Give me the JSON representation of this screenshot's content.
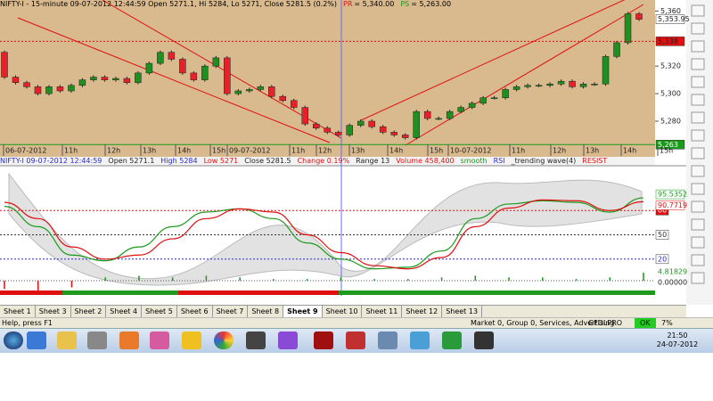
{
  "price_header": {
    "title": "NIFTY-I - 15-minute 09-07-2012 12:44:59 Open 5271.1, Hi 5284, Lo 5271, Close 5281.5 (0.2%)",
    "pr_label": "PR",
    "pr_value": "= 5,340.00",
    "ps_label": "PS",
    "ps_value": "= 5,263.00"
  },
  "indicator_header": [
    "NIFTY-I 09-07-2012 12:44:59",
    "Open 5271.1",
    "High 5284",
    "Low 5271",
    "Close 5281.5",
    "Change 0.19%",
    "Range 13",
    "Volume 458,400",
    "smooth",
    "RSI",
    "_trending wave(4)",
    "RESIST"
  ],
  "chart_data": [
    {
      "type": "candlestick",
      "first_open": 5330,
      "up_color": "#1f8f1f",
      "down_color": "#e8202a",
      "closes": [
        5312,
        5308,
        5305,
        5300,
        5305,
        5302,
        5306,
        5310,
        5312,
        5310,
        5311,
        5308,
        5315,
        5322,
        5330,
        5325,
        5315,
        5310,
        5320,
        5326,
        5300,
        5302,
        5303,
        5305,
        5298,
        5295,
        5290,
        5278,
        5275,
        5272,
        5270,
        5277,
        5280,
        5276,
        5272,
        5270,
        5268,
        5287,
        5282,
        5282,
        5287,
        5290,
        5293,
        5297,
        5297,
        5303,
        5305,
        5306,
        5306,
        5307,
        5309,
        5305,
        5307,
        5307,
        5327,
        5337,
        5358,
        5354
      ],
      "ylim": [
        5258,
        5368
      ],
      "yticks": [
        {
          "value": 5360,
          "label": "5,360"
        },
        {
          "value": 5320,
          "label": "5,320"
        },
        {
          "value": 5300,
          "label": "5,300"
        },
        {
          "value": 5280,
          "label": "5,280"
        }
      ],
      "time_labels": [
        "06-07-2012",
        "11h",
        "12h",
        "13h",
        "14h",
        "15h",
        "09-07-2012",
        "11h",
        "12h",
        "13h",
        "14h",
        "15h",
        "10-07-2012",
        "11h",
        "12h",
        "13h",
        "14h",
        "15h"
      ],
      "resistance": {
        "value": 5338,
        "label": "5,338"
      },
      "support": {
        "value": 5263,
        "label": "5,263"
      },
      "last_price": {
        "value": 5353.95,
        "label": "5,353.95"
      }
    },
    {
      "type": "line",
      "ylim": [
        0,
        100
      ],
      "series": [
        {
          "color": "#1a9a1a",
          "values": [
            85,
            60,
            25,
            18,
            35,
            60,
            78,
            82,
            70,
            40,
            20,
            8,
            10,
            30,
            70,
            88,
            92,
            90,
            78,
            95.5352
          ],
          "value_label": "95.5352"
        },
        {
          "color": "#e01010",
          "values": [
            90,
            70,
            35,
            20,
            25,
            45,
            70,
            82,
            78,
            50,
            28,
            12,
            8,
            22,
            60,
            83,
            93,
            92,
            80,
            90.7719
          ],
          "value_label": "90.7719"
        }
      ],
      "levels": [
        {
          "value": 80,
          "label": "80",
          "color": "#e01010"
        },
        {
          "value": 50,
          "label": "50",
          "color": "#333"
        },
        {
          "value": 20,
          "label": "20",
          "color": "#2a2ad0"
        }
      ],
      "histogram": {
        "ylim": [
          -8,
          8
        ],
        "values": [
          -5,
          -6,
          -4,
          2,
          3,
          2,
          3,
          2,
          1,
          1,
          2,
          1,
          1,
          2,
          3,
          2,
          2,
          1,
          2,
          4.81829
        ],
        "value_label": "4.81829",
        "zero": {
          "value": 0,
          "label": "0.00000"
        }
      }
    }
  ],
  "sheets": [
    "Sheet 1",
    "Sheet 3",
    "Sheet 2",
    "Sheet 4",
    "Sheet 5",
    "Sheet 6",
    "Sheet 7",
    "Sheet 8",
    "Sheet 9",
    "Sheet 10",
    "Sheet 11",
    "Sheet 12",
    "Sheet 13"
  ],
  "active_sheet": "Sheet 9",
  "status": {
    "help": "Help, press F1",
    "market": "Market 0, Group 0, Services, Advertising",
    "db": "GFDLPRO",
    "ok": "OK",
    "percent": "7%"
  },
  "clock": {
    "time": "21:50",
    "date": "24-07-2012"
  }
}
